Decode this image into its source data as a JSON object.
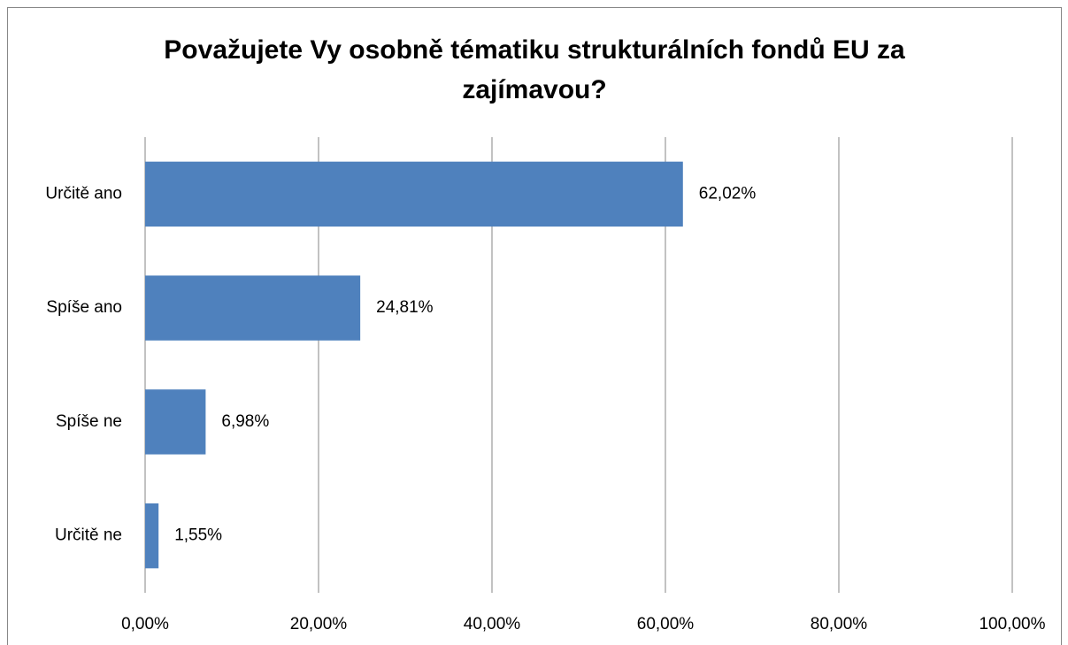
{
  "chart_data": {
    "type": "bar",
    "orientation": "horizontal",
    "title": "Považujete Vy osobně tématiku strukturálních fondů EU za zajímavou?",
    "categories": [
      "Určitě ano",
      "Spíše ano",
      "Spíše ne",
      "Určitě ne"
    ],
    "values": [
      62.02,
      24.81,
      6.98,
      1.55
    ],
    "value_labels": [
      "62,02%",
      "24,81%",
      "6,98%",
      "1,55%"
    ],
    "color": "#4f81bd",
    "xlim": [
      0,
      100
    ],
    "xticks": [
      {
        "value": 0,
        "label": "0,00%"
      },
      {
        "value": 20,
        "label": "20,00%"
      },
      {
        "value": 40,
        "label": "40,00%"
      },
      {
        "value": 60,
        "label": "60,00%"
      },
      {
        "value": 80,
        "label": "80,00%"
      },
      {
        "value": 100,
        "label": "100,00%"
      }
    ],
    "grid": true
  }
}
